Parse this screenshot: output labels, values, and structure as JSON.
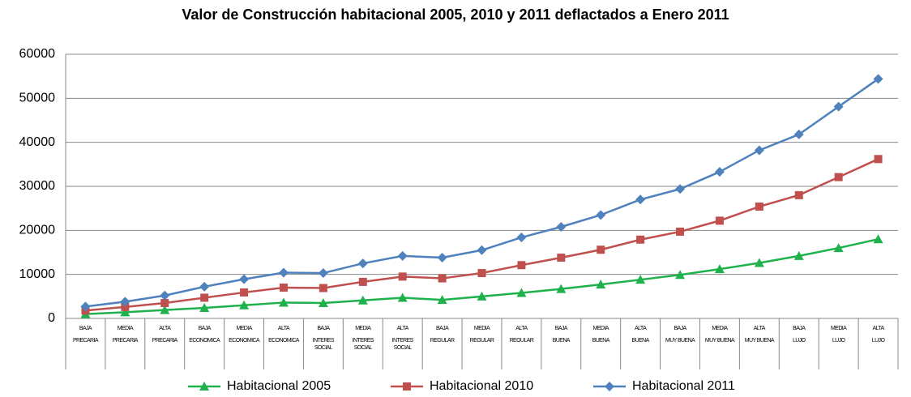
{
  "chart_data": {
    "type": "line",
    "title": "Valor de Construcción habitacional 2005, 2010 y 2011 deflactados a Enero 2011",
    "categories": [
      [
        "BAJA",
        "PRECARIA"
      ],
      [
        "MEDIA",
        "PRECARIA"
      ],
      [
        "ALTA",
        "PRECARIA"
      ],
      [
        "BAJA",
        "ECONOMICA"
      ],
      [
        "MEDIA",
        "ECONOMICA"
      ],
      [
        "ALTA",
        "ECONOMICA"
      ],
      [
        "BAJA",
        "INTERES",
        "SOCIAL"
      ],
      [
        "MEDIA",
        "INTERES",
        "SOCIAL"
      ],
      [
        "ALTA",
        "INTERES",
        "SOCIAL"
      ],
      [
        "BAJA",
        "REGULAR"
      ],
      [
        "MEDIA",
        "REGULAR"
      ],
      [
        "ALTA",
        "REGULAR"
      ],
      [
        "BAJA",
        "BUENA"
      ],
      [
        "MEDIA",
        "BUENA"
      ],
      [
        "ALTA",
        "BUENA"
      ],
      [
        "BAJA",
        "MUY BUENA"
      ],
      [
        "MEDIA",
        "MUY BUENA"
      ],
      [
        "ALTA",
        "MUY BUENA"
      ],
      [
        "BAJA",
        "LUJO"
      ],
      [
        "MEDIA",
        "LUJO"
      ],
      [
        "ALTA",
        "LUJO"
      ]
    ],
    "series": [
      {
        "name": "Habitacional 2005",
        "color": "#1fb14b",
        "marker": "triangle",
        "values": [
          1000,
          1400,
          1900,
          2400,
          3000,
          3600,
          3500,
          4100,
          4700,
          4200,
          5000,
          5800,
          6700,
          7700,
          8800,
          9900,
          11200,
          12600,
          14200,
          16000,
          18000
        ]
      },
      {
        "name": "Habitacional 2010",
        "color": "#c0504d",
        "marker": "square",
        "values": [
          1800,
          2600,
          3500,
          4700,
          5900,
          7000,
          6900,
          8300,
          9500,
          9100,
          10300,
          12100,
          13800,
          15600,
          17900,
          19700,
          22200,
          25400,
          28000,
          32100,
          36200
        ]
      },
      {
        "name": "Habitacional 2011",
        "color": "#4f81bd",
        "marker": "diamond",
        "values": [
          2700,
          3800,
          5200,
          7200,
          8900,
          10400,
          10300,
          12500,
          14200,
          13800,
          15500,
          18400,
          20800,
          23500,
          27000,
          29400,
          33300,
          38200,
          41800,
          48100,
          54400
        ]
      }
    ],
    "ylim": [
      0,
      60000
    ],
    "yticks": [
      0,
      10000,
      20000,
      30000,
      40000,
      50000,
      60000
    ],
    "grid": true,
    "legend": "bottom"
  }
}
